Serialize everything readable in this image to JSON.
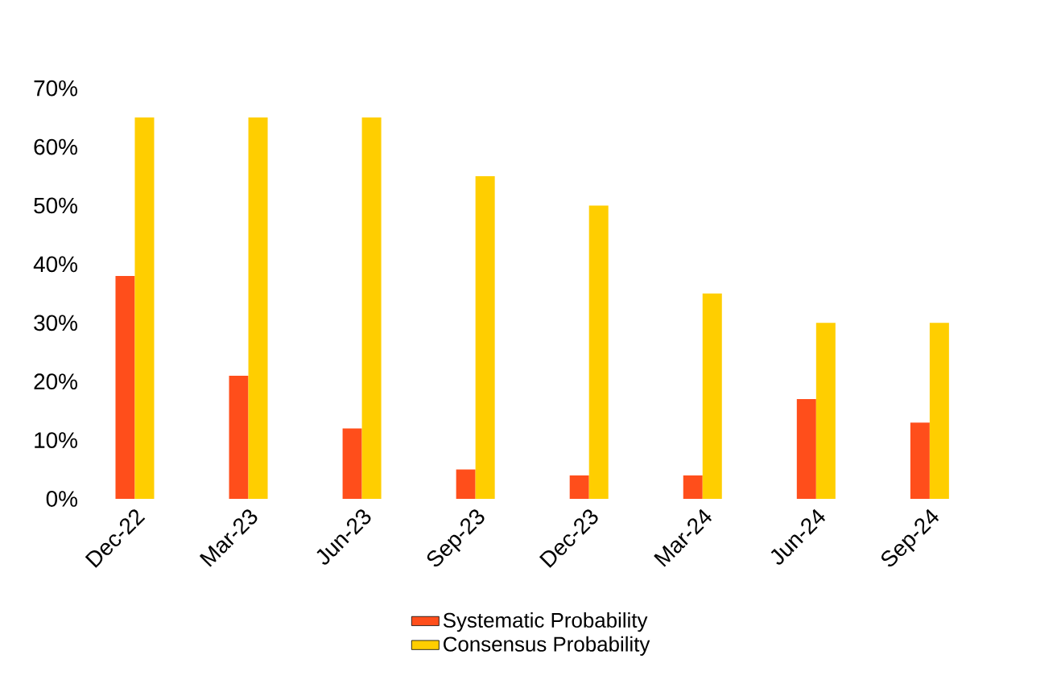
{
  "chart_data": {
    "type": "bar",
    "categories": [
      "Dec-22",
      "Mar-23",
      "Jun-23",
      "Sep-23",
      "Dec-23",
      "Mar-24",
      "Jun-24",
      "Sep-24"
    ],
    "series": [
      {
        "name": "Systematic Probability",
        "color": "#ff4e1b",
        "values": [
          38,
          21,
          12,
          5,
          4,
          4,
          17,
          13
        ]
      },
      {
        "name": "Consensus Probability",
        "color": "#ffce00",
        "values": [
          65,
          65,
          65,
          55,
          50,
          35,
          30,
          30
        ]
      }
    ],
    "ylim": [
      0,
      70
    ],
    "yticks": [
      {
        "value": 0,
        "label": "0%"
      },
      {
        "value": 10,
        "label": "10%"
      },
      {
        "value": 20,
        "label": "20%"
      },
      {
        "value": 30,
        "label": "30%"
      },
      {
        "value": 40,
        "label": "40%"
      },
      {
        "value": 50,
        "label": "50%"
      },
      {
        "value": 60,
        "label": "60%"
      },
      {
        "value": 70,
        "label": "70%"
      }
    ],
    "grid": false,
    "legend": "bottom"
  }
}
